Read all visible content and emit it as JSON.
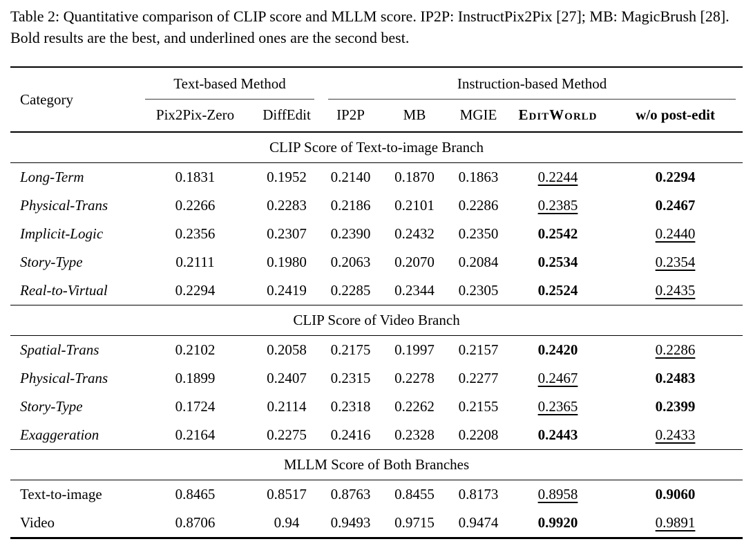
{
  "colors": {
    "background": "#ffffff",
    "text": "#000000",
    "rule": "#000000"
  },
  "caption": "Table 2: Quantitative comparison of CLIP score and MLLM score. IP2P: InstructPix2Pix [27]; MB: MagicBrush [28]. Bold results are the best, and underlined ones are the second best.",
  "table": {
    "category_header": "Category",
    "column_groups": [
      {
        "label": "Text-based Method",
        "colspan": 2
      },
      {
        "label": "Instruction-based Method",
        "colspan": 5
      }
    ],
    "method_columns": [
      {
        "label": "Pix2Pix-Zero",
        "style": "normal"
      },
      {
        "label": "DiffEdit",
        "style": "normal"
      },
      {
        "label": "IP2P",
        "style": "normal"
      },
      {
        "label": "MB",
        "style": "normal"
      },
      {
        "label": "MGIE",
        "style": "normal"
      },
      {
        "label": "EditWorld",
        "style": "smallcaps-bold"
      },
      {
        "label": "w/o post-edit",
        "style": "bold"
      }
    ],
    "style_legend": {
      "bold": "best result",
      "underline": "second best result"
    },
    "sections": [
      {
        "title": "CLIP Score of Text-to-image Branch",
        "category_italic": true,
        "rows": [
          {
            "category": "Long-Term",
            "cells": [
              {
                "v": "0.1831",
                "s": "normal"
              },
              {
                "v": "0.1952",
                "s": "normal"
              },
              {
                "v": "0.2140",
                "s": "normal"
              },
              {
                "v": "0.1870",
                "s": "normal"
              },
              {
                "v": "0.1863",
                "s": "normal"
              },
              {
                "v": "0.2244",
                "s": "underline"
              },
              {
                "v": "0.2294",
                "s": "bold"
              }
            ]
          },
          {
            "category": "Physical-Trans",
            "cells": [
              {
                "v": "0.2266",
                "s": "normal"
              },
              {
                "v": "0.2283",
                "s": "normal"
              },
              {
                "v": "0.2186",
                "s": "normal"
              },
              {
                "v": "0.2101",
                "s": "normal"
              },
              {
                "v": "0.2286",
                "s": "normal"
              },
              {
                "v": "0.2385",
                "s": "underline"
              },
              {
                "v": "0.2467",
                "s": "bold"
              }
            ]
          },
          {
            "category": "Implicit-Logic",
            "cells": [
              {
                "v": "0.2356",
                "s": "normal"
              },
              {
                "v": "0.2307",
                "s": "normal"
              },
              {
                "v": "0.2390",
                "s": "normal"
              },
              {
                "v": "0.2432",
                "s": "normal"
              },
              {
                "v": "0.2350",
                "s": "normal"
              },
              {
                "v": "0.2542",
                "s": "bold"
              },
              {
                "v": "0.2440",
                "s": "underline"
              }
            ]
          },
          {
            "category": "Story-Type",
            "cells": [
              {
                "v": "0.2111",
                "s": "normal"
              },
              {
                "v": "0.1980",
                "s": "normal"
              },
              {
                "v": "0.2063",
                "s": "normal"
              },
              {
                "v": "0.2070",
                "s": "normal"
              },
              {
                "v": "0.2084",
                "s": "normal"
              },
              {
                "v": "0.2534",
                "s": "bold"
              },
              {
                "v": "0.2354",
                "s": "underline"
              }
            ]
          },
          {
            "category": "Real-to-Virtual",
            "cells": [
              {
                "v": "0.2294",
                "s": "normal"
              },
              {
                "v": "0.2419",
                "s": "normal"
              },
              {
                "v": "0.2285",
                "s": "normal"
              },
              {
                "v": "0.2344",
                "s": "normal"
              },
              {
                "v": "0.2305",
                "s": "normal"
              },
              {
                "v": "0.2524",
                "s": "bold"
              },
              {
                "v": "0.2435",
                "s": "underline"
              }
            ]
          }
        ]
      },
      {
        "title": "CLIP Score of Video Branch",
        "category_italic": true,
        "rows": [
          {
            "category": "Spatial-Trans",
            "cells": [
              {
                "v": "0.2102",
                "s": "normal"
              },
              {
                "v": "0.2058",
                "s": "normal"
              },
              {
                "v": "0.2175",
                "s": "normal"
              },
              {
                "v": "0.1997",
                "s": "normal"
              },
              {
                "v": "0.2157",
                "s": "normal"
              },
              {
                "v": "0.2420",
                "s": "bold"
              },
              {
                "v": "0.2286",
                "s": "underline"
              }
            ]
          },
          {
            "category": "Physical-Trans",
            "cells": [
              {
                "v": "0.1899",
                "s": "normal"
              },
              {
                "v": "0.2407",
                "s": "normal"
              },
              {
                "v": "0.2315",
                "s": "normal"
              },
              {
                "v": "0.2278",
                "s": "normal"
              },
              {
                "v": "0.2277",
                "s": "normal"
              },
              {
                "v": "0.2467",
                "s": "underline"
              },
              {
                "v": "0.2483",
                "s": "bold"
              }
            ]
          },
          {
            "category": "Story-Type",
            "cells": [
              {
                "v": "0.1724",
                "s": "normal"
              },
              {
                "v": "0.2114",
                "s": "normal"
              },
              {
                "v": "0.2318",
                "s": "normal"
              },
              {
                "v": "0.2262",
                "s": "normal"
              },
              {
                "v": "0.2155",
                "s": "normal"
              },
              {
                "v": "0.2365",
                "s": "underline"
              },
              {
                "v": "0.2399",
                "s": "bold"
              }
            ]
          },
          {
            "category": "Exaggeration",
            "cells": [
              {
                "v": "0.2164",
                "s": "normal"
              },
              {
                "v": "0.2275",
                "s": "normal"
              },
              {
                "v": "0.2416",
                "s": "normal"
              },
              {
                "v": "0.2328",
                "s": "normal"
              },
              {
                "v": "0.2208",
                "s": "normal"
              },
              {
                "v": "0.2443",
                "s": "bold"
              },
              {
                "v": "0.2433",
                "s": "underline"
              }
            ]
          }
        ]
      },
      {
        "title": "MLLM Score of Both Branches",
        "category_italic": false,
        "rows": [
          {
            "category": "Text-to-image",
            "cells": [
              {
                "v": "0.8465",
                "s": "normal"
              },
              {
                "v": "0.8517",
                "s": "normal"
              },
              {
                "v": "0.8763",
                "s": "normal"
              },
              {
                "v": "0.8455",
                "s": "normal"
              },
              {
                "v": "0.8173",
                "s": "normal"
              },
              {
                "v": "0.8958",
                "s": "underline"
              },
              {
                "v": "0.9060",
                "s": "bold"
              }
            ]
          },
          {
            "category": "Video",
            "cells": [
              {
                "v": "0.8706",
                "s": "normal"
              },
              {
                "v": "0.94",
                "s": "normal"
              },
              {
                "v": "0.9493",
                "s": "normal"
              },
              {
                "v": "0.9715",
                "s": "normal"
              },
              {
                "v": "0.9474",
                "s": "normal"
              },
              {
                "v": "0.9920",
                "s": "bold"
              },
              {
                "v": "0.9891",
                "s": "underline"
              }
            ]
          }
        ]
      }
    ]
  }
}
